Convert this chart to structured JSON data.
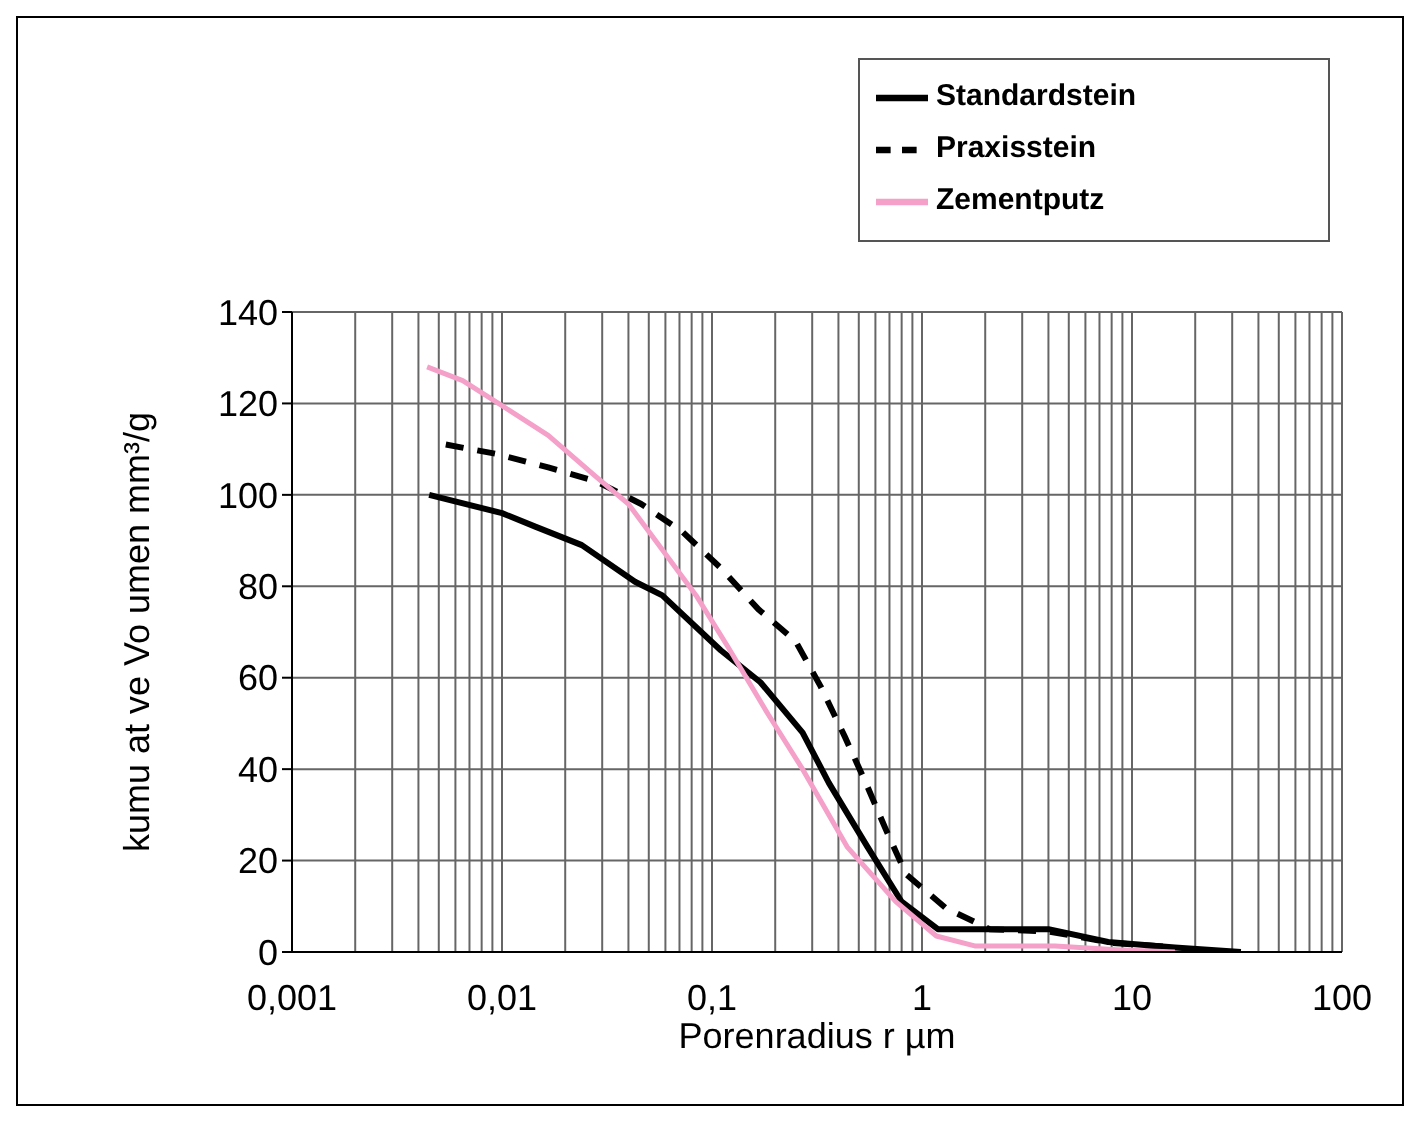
{
  "chart_data": {
    "type": "line",
    "xlabel": "Porenradius r µm",
    "ylabel": "kumu at ve Vo umen mm³/g",
    "log": "x",
    "grid": true,
    "legend": "top right",
    "marker": "none",
    "xlim": [
      0.001,
      100
    ],
    "ylim": [
      0,
      140
    ],
    "yticks": [
      0,
      20,
      40,
      60,
      80,
      100,
      120,
      140
    ],
    "xticks": [
      {
        "value": 0.001,
        "label": "0,001"
      },
      {
        "value": 0.002,
        "label": null
      },
      {
        "value": 0.003,
        "label": null
      },
      {
        "value": 0.004,
        "label": null
      },
      {
        "value": 0.005,
        "label": null
      },
      {
        "value": 0.006,
        "label": null
      },
      {
        "value": 0.007,
        "label": null
      },
      {
        "value": 0.008,
        "label": null
      },
      {
        "value": 0.009,
        "label": null
      },
      {
        "value": 0.01,
        "label": "0,01"
      },
      {
        "value": 0.02,
        "label": null
      },
      {
        "value": 0.03,
        "label": null
      },
      {
        "value": 0.04,
        "label": null
      },
      {
        "value": 0.05,
        "label": null
      },
      {
        "value": 0.06,
        "label": null
      },
      {
        "value": 0.07,
        "label": null
      },
      {
        "value": 0.08,
        "label": null
      },
      {
        "value": 0.09,
        "label": null
      },
      {
        "value": 0.1,
        "label": "0,1"
      },
      {
        "value": 0.2,
        "label": null
      },
      {
        "value": 0.3,
        "label": null
      },
      {
        "value": 0.4,
        "label": null
      },
      {
        "value": 0.5,
        "label": null
      },
      {
        "value": 0.6,
        "label": null
      },
      {
        "value": 0.7,
        "label": null
      },
      {
        "value": 0.8,
        "label": null
      },
      {
        "value": 0.9,
        "label": null
      },
      1,
      {
        "value": 2,
        "label": null
      },
      {
        "value": 3,
        "label": null
      },
      {
        "value": 4,
        "label": null
      },
      {
        "value": 5,
        "label": null
      },
      {
        "value": 6,
        "label": null
      },
      {
        "value": 7,
        "label": null
      },
      {
        "value": 8,
        "label": null
      },
      {
        "value": 9,
        "label": null
      },
      10,
      {
        "value": 20,
        "label": null
      },
      {
        "value": 30,
        "label": null
      },
      {
        "value": 40,
        "label": null
      },
      {
        "value": 50,
        "label": null
      },
      {
        "value": 60,
        "label": null
      },
      {
        "value": 70,
        "label": null
      },
      {
        "value": 80,
        "label": null
      },
      {
        "value": 90,
        "label": null
      },
      100
    ],
    "series": [
      {
        "name": "Standardstein",
        "color": "#000000",
        "line_style": "solid",
        "x": [
          0.0045,
          0.01,
          0.0145,
          0.024,
          0.043,
          0.058,
          0.11,
          0.17,
          0.27,
          0.36,
          0.55,
          0.8,
          1.19,
          4.0,
          7.7,
          16,
          33
        ],
        "values": [
          100,
          96,
          93,
          89,
          81,
          78,
          66,
          59,
          48,
          37,
          23,
          11,
          5,
          5,
          2.2,
          1,
          0
        ]
      },
      {
        "name": "Praxisstein",
        "color": "#000000",
        "line_style": "dashed",
        "x": [
          0.0054,
          0.0093,
          0.0166,
          0.028,
          0.046,
          0.072,
          0.11,
          0.166,
          0.25,
          0.33,
          0.43,
          0.54,
          0.67,
          0.84,
          1.3,
          2.1,
          4,
          8,
          16
        ],
        "values": [
          111,
          109,
          106,
          103,
          98,
          92,
          84,
          75,
          68,
          58,
          47,
          37,
          27,
          17,
          9.6,
          5,
          4.5,
          2,
          1
        ]
      },
      {
        "name": "Zementputz",
        "color": "#f4a0c8",
        "line_style": "solid",
        "x": [
          0.0044,
          0.0065,
          0.01,
          0.0166,
          0.028,
          0.04,
          0.058,
          0.084,
          0.12,
          0.185,
          0.27,
          0.44,
          0.75,
          1.17,
          1.8,
          4.3,
          8.4,
          16
        ],
        "values": [
          128,
          125,
          119.5,
          113,
          104,
          98,
          88,
          78,
          66.5,
          52,
          40,
          23,
          11,
          3.5,
          1.3,
          1.3,
          0.5,
          0
        ]
      }
    ]
  }
}
